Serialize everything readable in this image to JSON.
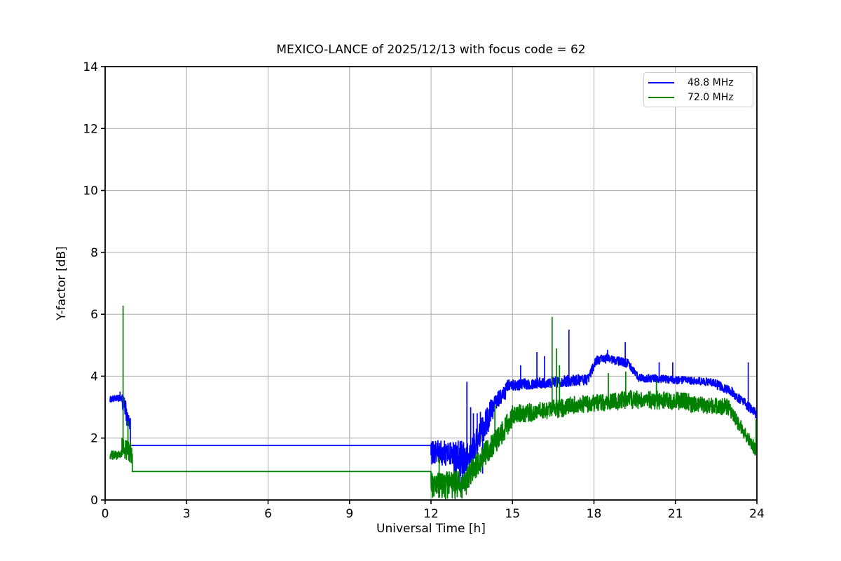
{
  "figure": {
    "title": "MEXICO-LANCE of 2025/12/13 with focus code = 62",
    "xlabel": "Universal Time [h]",
    "ylabel": "Y-factor [dB]"
  },
  "legend": {
    "position": "upper right",
    "items": [
      {
        "label": "48.8 MHz",
        "color": "#0000ff"
      },
      {
        "label": "72.0 MHz",
        "color": "#008000"
      }
    ]
  },
  "chart_data": {
    "type": "line",
    "title": "MEXICO-LANCE of 2025/12/13 with focus code = 62",
    "xlabel": "Universal Time [h]",
    "ylabel": "Y-factor [dB]",
    "xlim": [
      0,
      24
    ],
    "ylim": [
      0,
      14
    ],
    "xticks": [
      0,
      3,
      6,
      9,
      12,
      15,
      18,
      21,
      24
    ],
    "yticks": [
      0,
      2,
      4,
      6,
      8,
      10,
      12,
      14
    ],
    "grid": true,
    "grid_color": "#b0b0b0",
    "background_color": "#ffffff",
    "axis_color": "#000000",
    "legend_position": "upper right",
    "segments_format": "[t_start_h, t_end_h, value_start_dB, value_end_dB, noise_amplitude_dB]",
    "spikes_format": "[t_h, peak_value_dB]",
    "series": [
      {
        "name": "48.8 MHz",
        "color": "#0000ff",
        "line_width": 1.7,
        "segments": [
          [
            0.18,
            0.62,
            3.25,
            3.3,
            0.1
          ],
          [
            0.62,
            0.8,
            3.2,
            2.8,
            0.3
          ],
          [
            0.8,
            0.93,
            2.6,
            2.4,
            0.25
          ],
          [
            0.93,
            12.0,
            1.76,
            1.76,
            0.0
          ],
          [
            12.0,
            12.85,
            1.55,
            1.5,
            0.4
          ],
          [
            12.85,
            13.35,
            1.35,
            1.25,
            0.6
          ],
          [
            13.35,
            14.3,
            1.3,
            3.0,
            0.45
          ],
          [
            14.3,
            14.75,
            3.1,
            3.5,
            0.25
          ],
          [
            14.75,
            17.8,
            3.7,
            3.9,
            0.18
          ],
          [
            17.8,
            18.05,
            3.95,
            4.45,
            0.15
          ],
          [
            18.05,
            18.6,
            4.5,
            4.6,
            0.15
          ],
          [
            18.6,
            19.3,
            4.55,
            4.4,
            0.14
          ],
          [
            19.3,
            19.65,
            4.35,
            3.95,
            0.12
          ],
          [
            19.65,
            22.45,
            3.95,
            3.8,
            0.13
          ],
          [
            22.45,
            23.1,
            3.75,
            3.5,
            0.15
          ],
          [
            23.1,
            23.97,
            3.45,
            2.8,
            0.16
          ]
        ],
        "spikes": [
          [
            0.55,
            3.5
          ],
          [
            12.9,
            0.5
          ],
          [
            13.05,
            0.3
          ],
          [
            13.18,
            0.35
          ],
          [
            13.32,
            3.82
          ],
          [
            13.46,
            3.0
          ],
          [
            13.56,
            2.8
          ],
          [
            13.7,
            2.8
          ],
          [
            13.82,
            2.85
          ],
          [
            13.9,
            0.85
          ],
          [
            15.3,
            4.35
          ],
          [
            15.9,
            4.78
          ],
          [
            16.18,
            4.65
          ],
          [
            17.08,
            5.5
          ],
          [
            18.5,
            4.85
          ],
          [
            19.15,
            5.1
          ],
          [
            20.4,
            4.45
          ],
          [
            20.9,
            4.45
          ],
          [
            23.68,
            4.45
          ]
        ]
      },
      {
        "name": "72.0 MHz",
        "color": "#008000",
        "line_width": 1.7,
        "segments": [
          [
            0.18,
            0.62,
            1.45,
            1.45,
            0.14
          ],
          [
            0.62,
            1.0,
            1.7,
            1.5,
            0.35
          ],
          [
            1.0,
            12.0,
            0.92,
            0.92,
            0.0
          ],
          [
            12.0,
            13.3,
            0.45,
            0.5,
            0.45
          ],
          [
            13.3,
            15.0,
            0.7,
            2.6,
            0.4
          ],
          [
            15.0,
            17.0,
            2.75,
            3.0,
            0.3
          ],
          [
            17.0,
            19.0,
            3.05,
            3.2,
            0.28
          ],
          [
            19.0,
            21.5,
            3.25,
            3.2,
            0.3
          ],
          [
            21.5,
            23.0,
            3.1,
            3.0,
            0.27
          ],
          [
            23.0,
            23.97,
            2.9,
            1.6,
            0.22
          ]
        ],
        "spikes": [
          [
            0.66,
            6.28
          ],
          [
            0.84,
            2.55
          ],
          [
            12.3,
            1.35
          ],
          [
            14.35,
            3.05
          ],
          [
            16.46,
            5.92
          ],
          [
            16.62,
            4.9
          ],
          [
            16.73,
            4.35
          ],
          [
            18.53,
            4.1
          ],
          [
            19.17,
            4.15
          ],
          [
            20.3,
            3.85
          ],
          [
            23.97,
            2.6
          ]
        ]
      }
    ]
  }
}
